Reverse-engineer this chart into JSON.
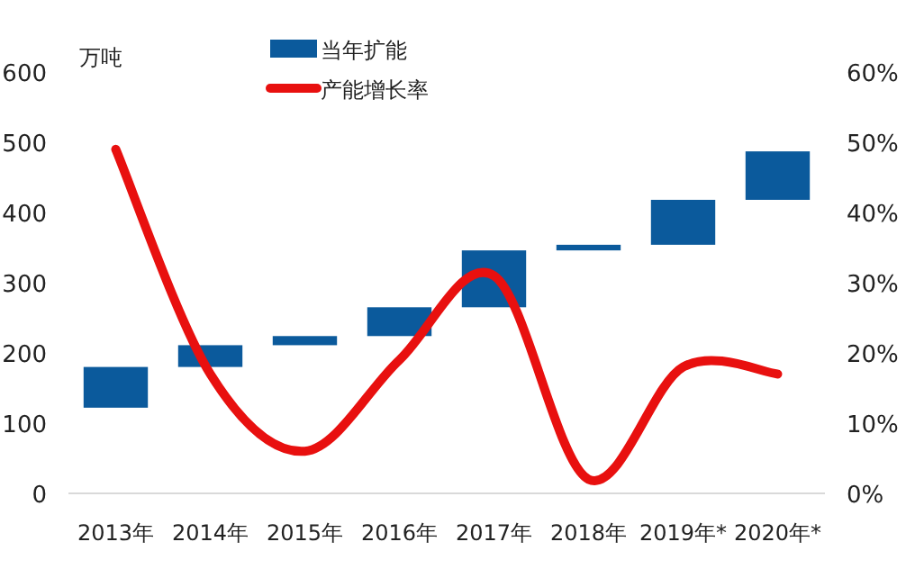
{
  "chart_data": {
    "type": "bar",
    "ylabel": "万吨",
    "categories": [
      "2013年",
      "2014年",
      "2015年",
      "2016年",
      "2017年",
      "2018年",
      "2019年*",
      "2020年*"
    ],
    "series": [
      {
        "name": "当年扩能",
        "color": "#0b5a9c",
        "base": [
          122,
          180,
          211,
          224,
          265,
          346,
          354,
          418
        ],
        "values": [
          58,
          31,
          13,
          41,
          81,
          8,
          64,
          69
        ]
      },
      {
        "name": "产能增长率",
        "type": "line",
        "axis": "y2",
        "color": "#e8100f",
        "values": [
          49,
          17,
          6,
          19,
          31,
          2,
          18,
          17
        ]
      }
    ],
    "ylim": [
      0,
      600
    ],
    "yticks": [
      0,
      100,
      200,
      300,
      400,
      500,
      600
    ],
    "y2lim": [
      0,
      60
    ],
    "y2ticks": [
      {
        "value": 0,
        "label": "0%"
      },
      {
        "value": 10,
        "label": "10%"
      },
      {
        "value": 20,
        "label": "20%"
      },
      {
        "value": 30,
        "label": "30%"
      },
      {
        "value": 40,
        "label": "40%"
      },
      {
        "value": 50,
        "label": "50%"
      },
      {
        "value": 60,
        "label": "60%"
      }
    ],
    "legend": "top"
  }
}
